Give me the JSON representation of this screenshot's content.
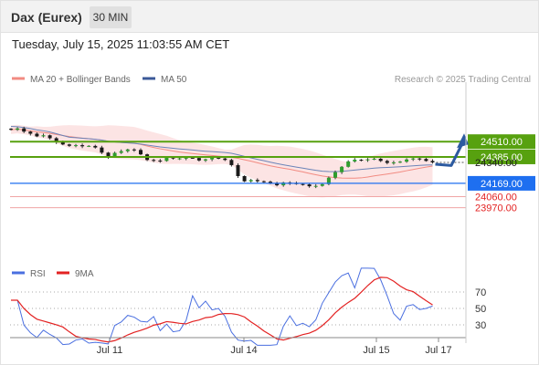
{
  "header": {
    "title": "Dax (Eurex)",
    "timeframe": "30 MIN"
  },
  "timestamp": "Tuesday, July 15, 2025 11:03:55 AM CET",
  "chart_data": [
    {
      "type": "line",
      "legend": [
        {
          "name": "MA 20 + Bollinger Bands",
          "color": "#f28b82"
        },
        {
          "name": "MA 50",
          "color": "#3b5998"
        }
      ],
      "attribution": "Research © 2025 Trading Central",
      "levels": [
        {
          "label": "24510.00",
          "value": 24510,
          "kind": "resistance",
          "color": "#57a10f"
        },
        {
          "label": "24385.00",
          "value": 24385,
          "kind": "resistance",
          "color": "#57a10f"
        },
        {
          "label": "24340.00",
          "value": 24340,
          "kind": "last",
          "color": "#1a1a1a"
        },
        {
          "label": "24169.00",
          "value": 24169,
          "kind": "pivot",
          "color": "#1e6ff0"
        },
        {
          "label": "24060.00",
          "value": 24060,
          "kind": "support",
          "color": "#e32222"
        },
        {
          "label": "23970.00",
          "value": 23970,
          "kind": "support",
          "color": "#e32222"
        }
      ],
      "x_ticks": [
        "Jul 11",
        "Jul 14",
        "Jul 15",
        "Jul 17"
      ],
      "close_series": [
        24607,
        24618,
        24592,
        24575,
        24553,
        24562,
        24538,
        24505,
        24487,
        24476,
        24481,
        24472,
        24475,
        24462,
        24420,
        24385,
        24418,
        24432,
        24446,
        24442,
        24406,
        24360,
        24355,
        24352,
        24380,
        24372,
        24373,
        24378,
        24376,
        24356,
        24365,
        24378,
        24372,
        24360,
        24318,
        24228,
        24185,
        24196,
        24186,
        24182,
        24168,
        24153,
        24176,
        24170,
        24163,
        24160,
        24145,
        24148,
        24162,
        24215,
        24260,
        24304,
        24348,
        24362,
        24360,
        24365,
        24370,
        24352,
        24336,
        24340,
        24346,
        24364,
        24372,
        24368,
        24352,
        24340
      ],
      "projection": {
        "direction": "up",
        "target": 24510
      }
    },
    {
      "type": "line",
      "legend": [
        {
          "name": "RSI",
          "color": "#4a6fe0"
        },
        {
          "name": "9MA",
          "color": "#e32222"
        }
      ],
      "levels": [
        70,
        50,
        30
      ],
      "ylim": [
        10,
        90
      ]
    }
  ]
}
